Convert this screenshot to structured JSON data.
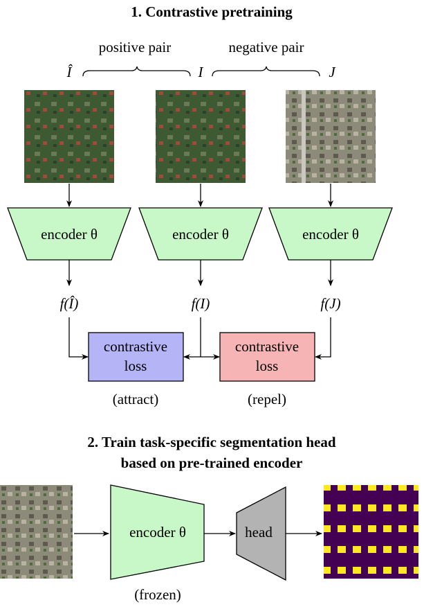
{
  "section1": {
    "title": "1. Contrastive pretraining",
    "pairs": [
      "positive pair",
      "negative pair"
    ],
    "images": [
      {
        "label": "Î",
        "encoder": "encoder θ",
        "feature": "f(Î)"
      },
      {
        "label": "I",
        "encoder": "encoder θ",
        "feature": "f(I)"
      },
      {
        "label": "J",
        "encoder": "encoder θ",
        "feature": "f(J)"
      }
    ],
    "losses": [
      {
        "lines": [
          "contrastive",
          "loss"
        ],
        "note": "(attract)"
      },
      {
        "lines": [
          "contrastive",
          "loss"
        ],
        "note": "(repel)"
      }
    ]
  },
  "section2": {
    "title_lines": [
      "2. Train task-specific segmentation head",
      "based on pre-trained encoder"
    ],
    "encoder": "encoder θ",
    "head": "head",
    "note": "(frozen)"
  }
}
